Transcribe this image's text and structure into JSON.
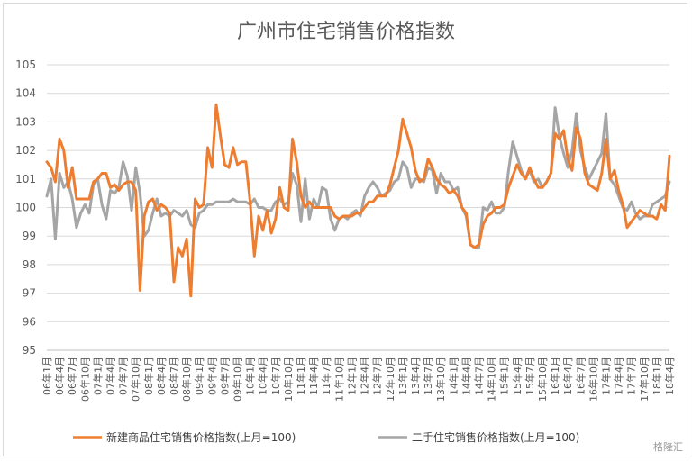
{
  "chart_data": {
    "type": "line",
    "title": "广州市住宅销售价格指数",
    "ylim": [
      95,
      105
    ],
    "yticks": [
      95,
      96,
      97,
      98,
      99,
      100,
      101,
      102,
      103,
      104,
      105
    ],
    "grid": "horizontal",
    "legend_position": "bottom",
    "x_tick_labels": [
      "06年1月",
      "06年4月",
      "06年7月",
      "06年10月",
      "07年1月",
      "07年4月",
      "07年7月",
      "07年10月",
      "08年1月",
      "08年4月",
      "08年7月",
      "08年10月",
      "09年1月",
      "09年4月",
      "09年7月",
      "09年10月",
      "10年1月",
      "10年4月",
      "10年7月",
      "10年10月",
      "11年1月",
      "11年4月",
      "11年7月",
      "11年10月",
      "12年1月",
      "12年4月",
      "12年7月",
      "12年10月",
      "13年1月",
      "13年4月",
      "13年7月",
      "13年10月",
      "14年1月",
      "14年4月",
      "14年7月",
      "14年10月",
      "15年1月",
      "15年4月",
      "15年7月",
      "15年10月",
      "16年1月",
      "16年4月",
      "16年7月",
      "16年10月",
      "17年1月",
      "17年4月",
      "17年7月",
      "17年10月",
      "18年1月",
      "18年4月"
    ],
    "series": [
      {
        "name": "新建商品住宅销售价格指数(上月=100)",
        "color": "#ED7D31",
        "values": [
          101.6,
          101.4,
          100.9,
          102.4,
          102.0,
          100.7,
          101.4,
          100.3,
          100.3,
          100.3,
          100.3,
          100.9,
          101.0,
          101.2,
          101.2,
          100.7,
          100.8,
          100.6,
          100.8,
          100.9,
          100.9,
          100.6,
          97.1,
          99.7,
          100.2,
          100.3,
          99.9,
          100.1,
          100.0,
          99.8,
          97.4,
          98.6,
          98.3,
          98.9,
          96.9,
          100.3,
          100.0,
          100.1,
          102.1,
          101.4,
          103.6,
          102.5,
          101.5,
          101.4,
          102.1,
          101.5,
          101.6,
          101.6,
          100.2,
          98.3,
          99.7,
          99.2,
          99.9,
          99.1,
          99.6,
          100.7,
          100.0,
          99.9,
          102.4,
          101.6,
          100.4,
          100.0,
          100.2,
          100.0,
          100.0,
          100.0,
          100.0,
          100.0,
          99.7,
          99.6,
          99.7,
          99.7,
          99.7,
          99.8,
          99.8,
          100.0,
          100.2,
          100.2,
          100.4,
          100.4,
          100.4,
          100.8,
          101.4,
          102.0,
          103.1,
          102.6,
          102.1,
          101.3,
          100.9,
          101.0,
          101.7,
          101.4,
          101.0,
          100.8,
          100.7,
          100.5,
          100.6,
          100.4,
          100.0,
          99.8,
          98.7,
          98.6,
          98.7,
          99.4,
          99.7,
          99.8,
          100.0,
          100.0,
          100.1,
          100.7,
          101.1,
          101.5,
          101.2,
          101.0,
          101.4,
          101.0,
          100.7,
          100.7,
          100.9,
          101.2,
          102.6,
          102.4,
          102.7,
          101.7,
          101.3,
          102.8,
          102.4,
          101.2,
          100.8,
          100.7,
          100.6,
          101.2,
          102.4,
          101.0,
          101.3,
          100.6,
          100.1,
          99.3,
          99.5,
          99.7,
          99.9,
          99.8,
          99.7,
          99.7,
          99.6,
          100.1,
          99.9,
          101.8
        ]
      },
      {
        "name": "二手住宅销售价格指数(上月=100)",
        "color": "#A5A5A5",
        "values": [
          100.4,
          101.0,
          98.9,
          101.2,
          100.7,
          100.9,
          100.3,
          99.3,
          99.8,
          100.1,
          99.8,
          100.8,
          101.0,
          100.1,
          99.6,
          100.6,
          100.5,
          100.7,
          101.6,
          101.1,
          99.9,
          101.4,
          100.5,
          99.0,
          99.2,
          99.8,
          100.3,
          99.7,
          99.8,
          99.7,
          99.9,
          99.8,
          99.7,
          99.9,
          99.4,
          99.3,
          99.8,
          99.9,
          100.1,
          100.1,
          100.2,
          100.2,
          100.2,
          100.2,
          100.3,
          100.2,
          100.2,
          100.2,
          100.1,
          100.3,
          100.0,
          100.0,
          99.9,
          99.9,
          100.2,
          100.3,
          100.1,
          100.2,
          101.2,
          100.8,
          99.5,
          101.0,
          99.6,
          100.3,
          100.0,
          100.7,
          100.6,
          99.6,
          99.2,
          99.6,
          99.7,
          99.6,
          99.8,
          99.9,
          99.7,
          100.4,
          100.7,
          100.9,
          100.7,
          100.4,
          100.5,
          100.6,
          100.9,
          101.0,
          101.6,
          101.4,
          100.7,
          101.0,
          101.0,
          100.9,
          101.4,
          101.3,
          100.5,
          101.2,
          100.9,
          100.9,
          100.6,
          100.7,
          100.0,
          99.7,
          98.7,
          98.6,
          98.6,
          100.0,
          99.9,
          100.2,
          99.8,
          99.8,
          100.0,
          101.3,
          102.3,
          101.8,
          101.3,
          101.0,
          101.3,
          100.9,
          101.0,
          100.7,
          100.9,
          101.2,
          103.5,
          102.5,
          101.9,
          101.4,
          102.0,
          103.3,
          102.0,
          101.4,
          101.0,
          101.3,
          101.6,
          101.9,
          103.3,
          101.0,
          100.8,
          100.4,
          100.0,
          99.9,
          100.2,
          99.8,
          99.6,
          99.7,
          99.7,
          100.1,
          100.2,
          100.3,
          100.4,
          100.9
        ]
      }
    ]
  },
  "watermark": "格隆汇"
}
